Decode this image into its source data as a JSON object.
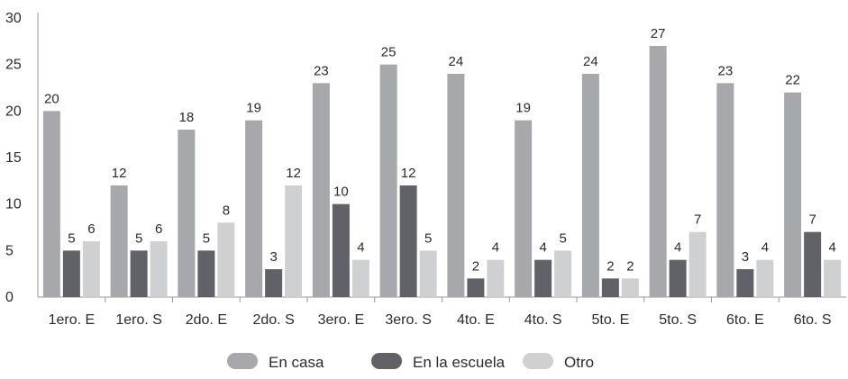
{
  "chart_data": {
    "type": "bar",
    "title": "",
    "xlabel": "",
    "ylabel": "",
    "ylim": [
      0,
      30
    ],
    "yticks": [
      0,
      5,
      10,
      15,
      20,
      25,
      30
    ],
    "grid": false,
    "legend_position": "bottom",
    "categories": [
      "1ero. E",
      "1ero. S",
      "2do. E",
      "2do. S",
      "3ero. E",
      "3ero. S",
      "4to. E",
      "4to. S",
      "5to. E",
      "5to. S",
      "6to. E",
      "6to. S"
    ],
    "series": [
      {
        "name": "En casa",
        "color": "#a7a8ac",
        "values": [
          20,
          12,
          18,
          19,
          23,
          25,
          24,
          19,
          24,
          27,
          23,
          22
        ]
      },
      {
        "name": "En la escuela",
        "color": "#616267",
        "values": [
          5,
          5,
          5,
          3,
          10,
          12,
          2,
          4,
          2,
          4,
          3,
          7
        ]
      },
      {
        "name": "Otro",
        "color": "#cfd0d2",
        "values": [
          6,
          6,
          8,
          12,
          4,
          5,
          4,
          5,
          2,
          7,
          4,
          4
        ]
      }
    ]
  }
}
